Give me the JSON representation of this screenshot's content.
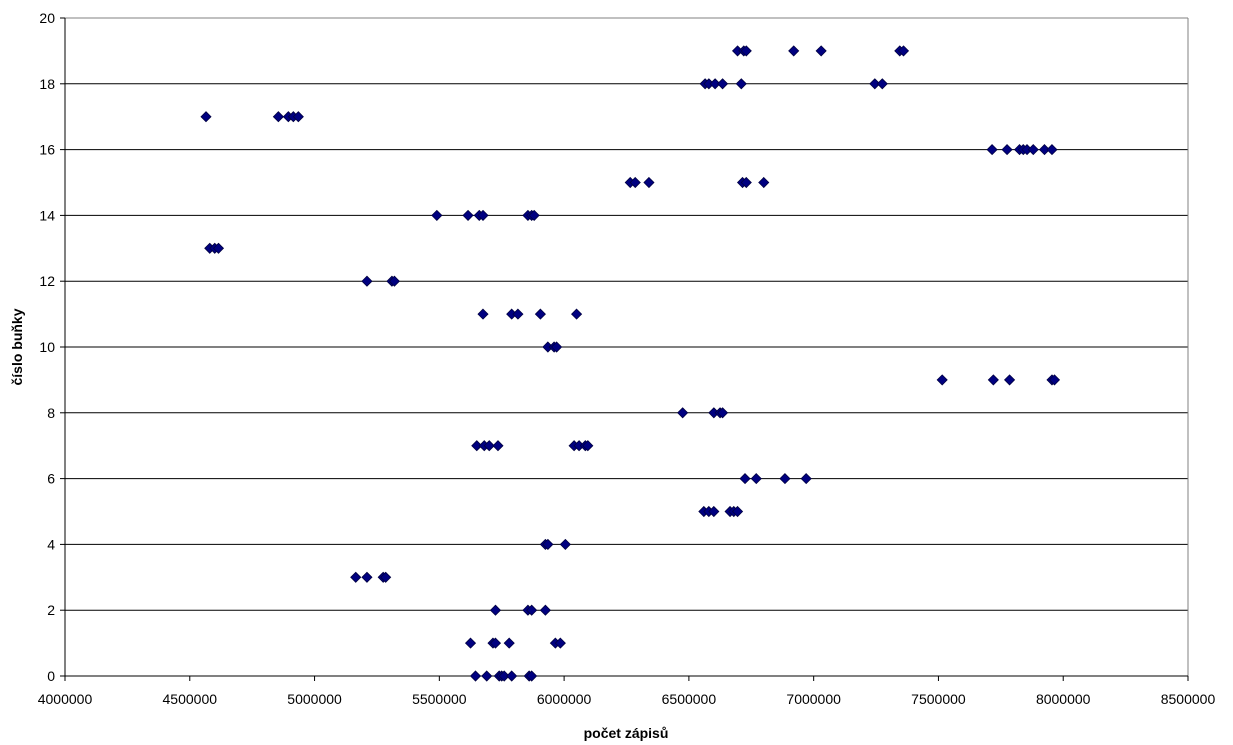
{
  "chart_data": {
    "type": "scatter",
    "title": "",
    "xlabel": "počet zápisů",
    "ylabel": "číslo buňky",
    "xlim": [
      4000000,
      8500000
    ],
    "ylim": [
      0,
      20
    ],
    "xticks": [
      4000000,
      4500000,
      5000000,
      5500000,
      6000000,
      6500000,
      7000000,
      7500000,
      8000000,
      8500000
    ],
    "yticks": [
      0,
      2,
      4,
      6,
      8,
      10,
      12,
      14,
      16,
      18,
      20
    ],
    "grid": "horizontal",
    "legend": "none",
    "marker": "diamond",
    "colors": {
      "marker_fill": "#000080",
      "marker_stroke": "#000040",
      "grid": "#000000",
      "axis": "#808080"
    },
    "points": [
      [
        5645000,
        0
      ],
      [
        5690000,
        0
      ],
      [
        5740000,
        0
      ],
      [
        5750000,
        0
      ],
      [
        5760000,
        0
      ],
      [
        5790000,
        0
      ],
      [
        5860000,
        0
      ],
      [
        5870000,
        0
      ],
      [
        5625000,
        1
      ],
      [
        5715000,
        1
      ],
      [
        5725000,
        1
      ],
      [
        5780000,
        1
      ],
      [
        5965000,
        1
      ],
      [
        5985000,
        1
      ],
      [
        5725000,
        2
      ],
      [
        5855000,
        2
      ],
      [
        5870000,
        2
      ],
      [
        5925000,
        2
      ],
      [
        5165000,
        3
      ],
      [
        5210000,
        3
      ],
      [
        5275000,
        3
      ],
      [
        5285000,
        3
      ],
      [
        5925000,
        4
      ],
      [
        5935000,
        4
      ],
      [
        6005000,
        4
      ],
      [
        6560000,
        5
      ],
      [
        6580000,
        5
      ],
      [
        6600000,
        5
      ],
      [
        6665000,
        5
      ],
      [
        6680000,
        5
      ],
      [
        6695000,
        5
      ],
      [
        6725000,
        6
      ],
      [
        6770000,
        6
      ],
      [
        6885000,
        6
      ],
      [
        6970000,
        6
      ],
      [
        5650000,
        7
      ],
      [
        5680000,
        7
      ],
      [
        5700000,
        7
      ],
      [
        5735000,
        7
      ],
      [
        6040000,
        7
      ],
      [
        6060000,
        7
      ],
      [
        6085000,
        7
      ],
      [
        6095000,
        7
      ],
      [
        6475000,
        8
      ],
      [
        6600000,
        8
      ],
      [
        6625000,
        8
      ],
      [
        6635000,
        8
      ],
      [
        7515000,
        9
      ],
      [
        7720000,
        9
      ],
      [
        7785000,
        9
      ],
      [
        7955000,
        9
      ],
      [
        7965000,
        9
      ],
      [
        5935000,
        10
      ],
      [
        5960000,
        10
      ],
      [
        5970000,
        10
      ],
      [
        5675000,
        11
      ],
      [
        5790000,
        11
      ],
      [
        5815000,
        11
      ],
      [
        5905000,
        11
      ],
      [
        6050000,
        11
      ],
      [
        5210000,
        12
      ],
      [
        5310000,
        12
      ],
      [
        5320000,
        12
      ],
      [
        4580000,
        13
      ],
      [
        4600000,
        13
      ],
      [
        4615000,
        13
      ],
      [
        5490000,
        14
      ],
      [
        5615000,
        14
      ],
      [
        5660000,
        14
      ],
      [
        5675000,
        14
      ],
      [
        5855000,
        14
      ],
      [
        5870000,
        14
      ],
      [
        5880000,
        14
      ],
      [
        6265000,
        15
      ],
      [
        6285000,
        15
      ],
      [
        6340000,
        15
      ],
      [
        6715000,
        15
      ],
      [
        6730000,
        15
      ],
      [
        6800000,
        15
      ],
      [
        7715000,
        16
      ],
      [
        7775000,
        16
      ],
      [
        7825000,
        16
      ],
      [
        7840000,
        16
      ],
      [
        7855000,
        16
      ],
      [
        7880000,
        16
      ],
      [
        7925000,
        16
      ],
      [
        7955000,
        16
      ],
      [
        4565000,
        17
      ],
      [
        4855000,
        17
      ],
      [
        4895000,
        17
      ],
      [
        4915000,
        17
      ],
      [
        4935000,
        17
      ],
      [
        6565000,
        18
      ],
      [
        6580000,
        18
      ],
      [
        6605000,
        18
      ],
      [
        6635000,
        18
      ],
      [
        6710000,
        18
      ],
      [
        7245000,
        18
      ],
      [
        7275000,
        18
      ],
      [
        6695000,
        19
      ],
      [
        6720000,
        19
      ],
      [
        6730000,
        19
      ],
      [
        6920000,
        19
      ],
      [
        7030000,
        19
      ],
      [
        7345000,
        19
      ],
      [
        7360000,
        19
      ]
    ]
  }
}
